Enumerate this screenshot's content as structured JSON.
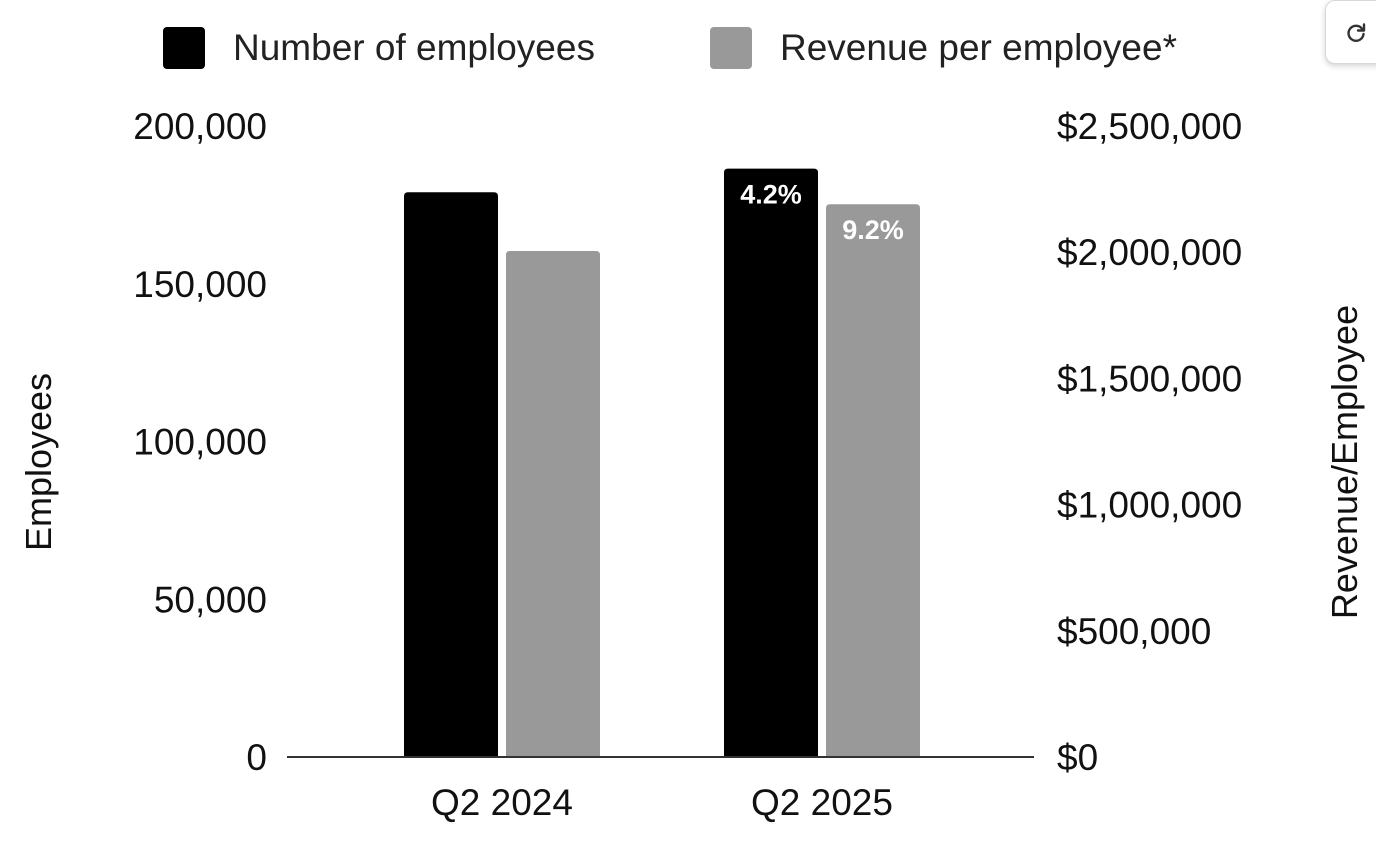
{
  "chart_data": {
    "type": "bar",
    "title": "",
    "categories": [
      "Q2 2024",
      "Q2 2025"
    ],
    "series": [
      {
        "name": "Number of employees",
        "axis": "left",
        "color": "#000000",
        "values": [
          179000,
          186500
        ],
        "labels": [
          "",
          "4.2%"
        ]
      },
      {
        "name": "Revenue per employee*",
        "axis": "right",
        "color": "#999999",
        "values": [
          2005000,
          2190000
        ],
        "labels": [
          "",
          "9.2%"
        ]
      }
    ],
    "left_axis": {
      "title": "Employees",
      "ylim": [
        0,
        200000
      ],
      "ticks": [
        0,
        50000,
        100000,
        150000,
        200000
      ],
      "tick_labels": [
        "0",
        "50,000",
        "100,000",
        "150,000",
        "200,000"
      ]
    },
    "right_axis": {
      "title": "Revenue/Employee",
      "ylim": [
        0,
        2500000
      ],
      "ticks": [
        0,
        500000,
        1000000,
        1500000,
        2000000,
        2500000
      ],
      "tick_labels": [
        "$0",
        "$500,000",
        "$1,000,000",
        "$1,500,000",
        "$2,000,000",
        "$2,500,000"
      ]
    },
    "legend_position": "top-center",
    "grid": false
  },
  "controls": {
    "refresh_icon": "refresh-icon"
  }
}
